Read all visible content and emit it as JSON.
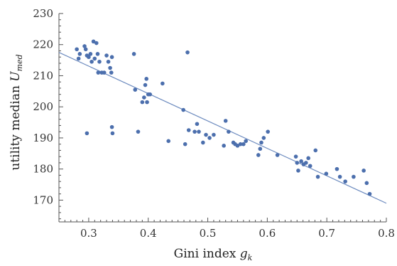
{
  "chart_data": {
    "type": "scatter",
    "xlabel": {
      "main": "Gini index ",
      "symbol": "g",
      "sub": "k"
    },
    "ylabel": {
      "main": "utility median ",
      "symbol": "U",
      "sub": "med"
    },
    "xlim": [
      0.25,
      0.8
    ],
    "ylim": [
      163,
      230
    ],
    "xticks": [
      "0.3",
      "0.4",
      "0.5",
      "0.6",
      "0.7",
      "0.8"
    ],
    "yticks": [
      "170",
      "180",
      "190",
      "200",
      "210",
      "220",
      "230"
    ],
    "grid": false,
    "point_color": "#4c6fad",
    "line_color": "#6d8bbf",
    "fit_line": {
      "x": [
        0.25,
        0.8
      ],
      "y": [
        217.5,
        169
      ]
    },
    "points": [
      [
        0.28,
        218.5
      ],
      [
        0.283,
        215.5
      ],
      [
        0.285,
        217
      ],
      [
        0.293,
        219.5
      ],
      [
        0.295,
        218.5
      ],
      [
        0.297,
        216.5
      ],
      [
        0.3,
        216
      ],
      [
        0.303,
        217
      ],
      [
        0.305,
        214.5
      ],
      [
        0.308,
        221
      ],
      [
        0.31,
        215.5
      ],
      [
        0.313,
        220.5
      ],
      [
        0.315,
        217
      ],
      [
        0.316,
        211
      ],
      [
        0.318,
        214.5
      ],
      [
        0.322,
        211
      ],
      [
        0.326,
        211
      ],
      [
        0.33,
        216.5
      ],
      [
        0.333,
        214.5
      ],
      [
        0.336,
        212.5
      ],
      [
        0.338,
        211
      ],
      [
        0.339,
        216
      ],
      [
        0.297,
        191.5
      ],
      [
        0.339,
        193.5
      ],
      [
        0.34,
        191.5
      ],
      [
        0.376,
        217
      ],
      [
        0.378,
        205.5
      ],
      [
        0.383,
        192
      ],
      [
        0.39,
        201.5
      ],
      [
        0.393,
        203
      ],
      [
        0.395,
        207
      ],
      [
        0.397,
        209
      ],
      [
        0.398,
        201.5
      ],
      [
        0.4,
        204
      ],
      [
        0.403,
        204
      ],
      [
        0.424,
        207.5
      ],
      [
        0.434,
        189
      ],
      [
        0.459,
        199
      ],
      [
        0.462,
        188
      ],
      [
        0.466,
        217.5
      ],
      [
        0.468,
        192.5
      ],
      [
        0.478,
        192
      ],
      [
        0.482,
        194.5
      ],
      [
        0.485,
        192
      ],
      [
        0.492,
        188.5
      ],
      [
        0.497,
        191
      ],
      [
        0.503,
        190
      ],
      [
        0.51,
        191
      ],
      [
        0.527,
        187.5
      ],
      [
        0.53,
        195.5
      ],
      [
        0.535,
        192
      ],
      [
        0.543,
        188.5
      ],
      [
        0.546,
        188
      ],
      [
        0.55,
        187.5
      ],
      [
        0.555,
        188
      ],
      [
        0.56,
        188
      ],
      [
        0.564,
        189
      ],
      [
        0.585,
        184.5
      ],
      [
        0.588,
        186.5
      ],
      [
        0.59,
        188.5
      ],
      [
        0.594,
        190
      ],
      [
        0.601,
        192
      ],
      [
        0.617,
        184.5
      ],
      [
        0.648,
        184
      ],
      [
        0.65,
        182
      ],
      [
        0.652,
        179.5
      ],
      [
        0.657,
        182.5
      ],
      [
        0.661,
        181.5
      ],
      [
        0.665,
        182
      ],
      [
        0.669,
        183.5
      ],
      [
        0.672,
        181
      ],
      [
        0.681,
        186
      ],
      [
        0.685,
        177.5
      ],
      [
        0.699,
        178.5
      ],
      [
        0.717,
        180
      ],
      [
        0.722,
        177.5
      ],
      [
        0.731,
        176
      ],
      [
        0.745,
        177.5
      ],
      [
        0.762,
        179.5
      ],
      [
        0.767,
        175.5
      ],
      [
        0.772,
        172
      ]
    ]
  }
}
